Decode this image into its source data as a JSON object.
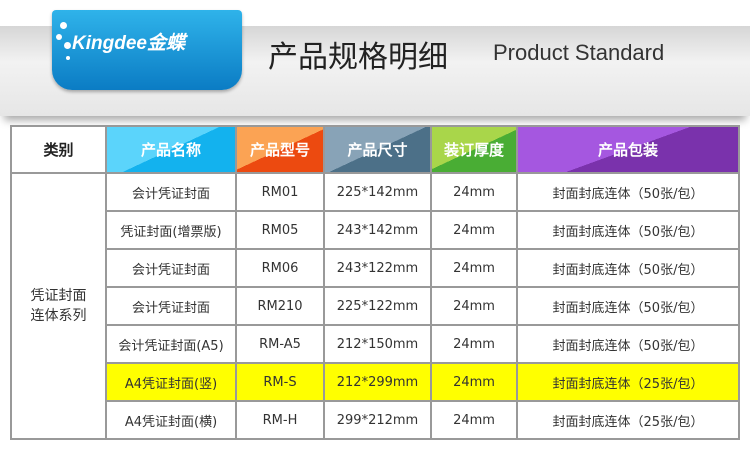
{
  "banner": {
    "logo": "Kingdee金蝶",
    "title": "产品规格明细",
    "subtitle": "Product Standard",
    "ribbon_color": "#1a9ad8"
  },
  "table": {
    "headers": [
      "类别",
      "产品名称",
      "产品型号",
      "产品尺寸",
      "装订厚度",
      "产品包装"
    ],
    "category": "凭证封面\n连体系列",
    "rows": [
      [
        "会计凭证封面",
        "RM01",
        "225*142mm",
        "24mm",
        "封面封底连体（50张/包）"
      ],
      [
        "凭证封面(增票版)",
        "RM05",
        "243*142mm",
        "24mm",
        "封面封底连体（50张/包）"
      ],
      [
        "会计凭证封面",
        "RM06",
        "243*122mm",
        "24mm",
        "封面封底连体（50张/包）"
      ],
      [
        "会计凭证封面",
        "RM210",
        "225*122mm",
        "24mm",
        "封面封底连体（50张/包）"
      ],
      [
        "会计凭证封面(A5)",
        "RM-A5",
        "212*150mm",
        "24mm",
        "封面封底连体（50张/包）"
      ],
      [
        "A4凭证封面(竖)",
        "RM-S",
        "212*299mm",
        "24mm",
        "封面封底连体（25张/包）"
      ],
      [
        "A4凭证封面(横)",
        "RM-H",
        "299*212mm",
        "24mm",
        "封面封底连体（25张/包）"
      ]
    ],
    "highlight_row": 5,
    "highlight_color": "#ffff00"
  }
}
